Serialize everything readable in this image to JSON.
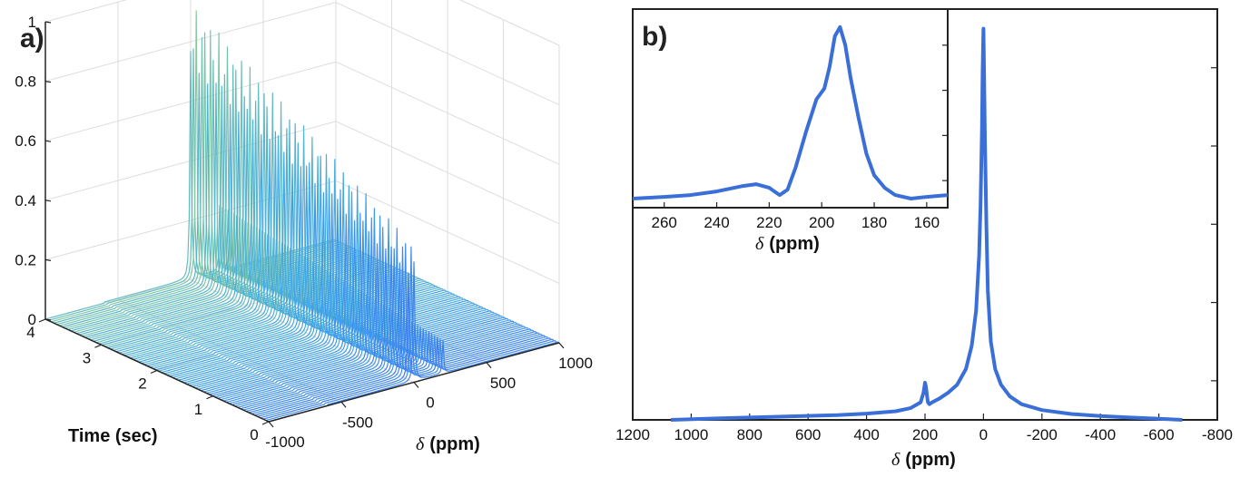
{
  "chart_data": [
    {
      "panel_label": "a)",
      "type": "waterfall",
      "x": {
        "label_symbol": "δ",
        "label_unit": "(ppm)",
        "ticks": [
          "-1000",
          "-500",
          "0",
          "500",
          "1000"
        ],
        "range": [
          -1000,
          1000
        ]
      },
      "y": {
        "label": "Time (sec)",
        "ticks": [
          "0",
          "1",
          "2",
          "3",
          "4"
        ],
        "range": [
          0,
          4
        ]
      },
      "z": {
        "ticks": [
          "0",
          "0.2",
          "0.4",
          "0.6",
          "0.8",
          "1"
        ],
        "range": [
          0,
          1
        ]
      },
      "grid": true,
      "colormap": [
        "#3a2ad0",
        "#3e6cf0",
        "#3fa8e8",
        "#7cc9a4",
        "#c8c860"
      ],
      "series_summary": {
        "n_traces": 80,
        "main_peak_ppm": 0,
        "main_peak_max": 0.95,
        "secondary_peak_ppm": 200,
        "secondary_peak_max": 0.22
      }
    },
    {
      "panel_label": "b)",
      "type": "line",
      "x": {
        "label_symbol": "δ",
        "label_unit": "(ppm)",
        "ticks": [
          "1200",
          "1000",
          "800",
          "600",
          "400",
          "200",
          "0",
          "-200",
          "-400",
          "-600",
          "-800"
        ],
        "range": [
          1200,
          -800
        ],
        "reversed": true
      },
      "ylim": [
        0,
        1.05
      ],
      "color": "#3a6fd8",
      "series": [
        {
          "x": [
            1070,
            900,
            700,
            500,
            400,
            300,
            250,
            215,
            205,
            200,
            197,
            193,
            190,
            185,
            175,
            150,
            120,
            90,
            60,
            40,
            25,
            15,
            10,
            5,
            3,
            1,
            0,
            -2,
            -5,
            -10,
            -15,
            -25,
            -40,
            -60,
            -90,
            -130,
            -200,
            -300,
            -400,
            -500,
            -600,
            -680
          ],
          "y": [
            0.0,
            0.004,
            0.008,
            0.012,
            0.016,
            0.022,
            0.03,
            0.045,
            0.07,
            0.095,
            0.085,
            0.06,
            0.045,
            0.04,
            0.045,
            0.055,
            0.07,
            0.09,
            0.13,
            0.19,
            0.28,
            0.42,
            0.55,
            0.75,
            0.88,
            0.97,
            1.0,
            0.9,
            0.72,
            0.5,
            0.33,
            0.2,
            0.13,
            0.09,
            0.06,
            0.04,
            0.025,
            0.015,
            0.01,
            0.006,
            0.003,
            0.0
          ]
        }
      ],
      "inset": {
        "x": {
          "label_symbol": "δ",
          "label_unit": "(ppm)",
          "ticks": [
            "260",
            "240",
            "220",
            "200",
            "180",
            "160"
          ],
          "range": [
            272,
            152
          ],
          "reversed": true
        },
        "ylim": [
          0,
          1.1
        ],
        "series": [
          {
            "x": [
              272,
              260,
              250,
              240,
              230,
              225,
              220,
              216,
              213,
              210,
              206,
              202,
              199,
              197,
              195,
              193,
              191,
              189,
              186,
              183,
              180,
              176,
              172,
              166,
              160,
              152
            ],
            "y": [
              0.05,
              0.06,
              0.07,
              0.09,
              0.12,
              0.13,
              0.11,
              0.07,
              0.1,
              0.22,
              0.42,
              0.6,
              0.66,
              0.78,
              0.95,
              1.0,
              0.9,
              0.72,
              0.5,
              0.3,
              0.18,
              0.11,
              0.07,
              0.05,
              0.06,
              0.07
            ]
          }
        ]
      }
    }
  ]
}
